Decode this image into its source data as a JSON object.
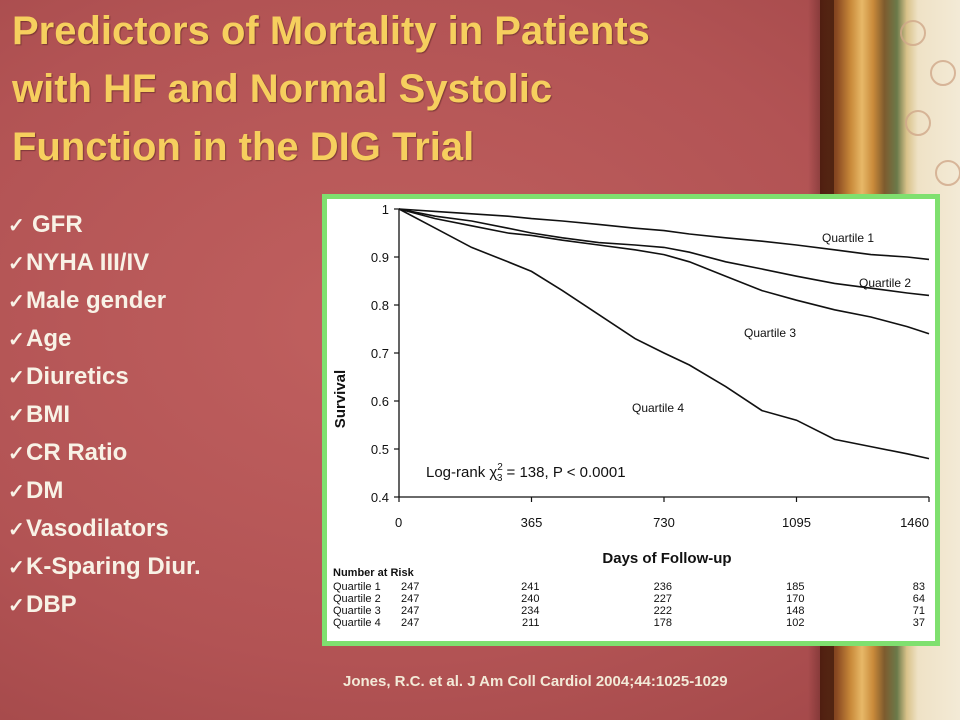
{
  "slide": {
    "title_lines": [
      "Predictors of Mortality in Patients",
      "with HF and Normal Systolic",
      "Function in the DIG Trial"
    ],
    "bullets": [
      "GFR",
      "NYHA III/IV",
      "Male gender",
      "Age",
      "Diuretics",
      "BMI",
      "CR Ratio",
      "DM",
      "Vasodilators",
      "K-Sparing Diur.",
      "DBP"
    ],
    "citation": "Jones, R.C. et al. J Am Coll Cardiol 2004;44:1025-1029",
    "colors": {
      "title": "#f6cf5e",
      "background": "#b8585a",
      "figure_border": "#7fe06f"
    }
  },
  "chart_data": {
    "type": "line",
    "title": "",
    "xlabel": "Days of Follow-up",
    "ylabel": "Survival",
    "xlim": [
      0,
      1460
    ],
    "ylim": [
      0.4,
      1
    ],
    "x_ticks": [
      0,
      365,
      730,
      1095,
      1460
    ],
    "x_tick_labels": [
      "0",
      "365",
      "730",
      "1095",
      "1460"
    ],
    "y_ticks": [
      0.4,
      0.5,
      0.6,
      0.7,
      0.8,
      0.9,
      1
    ],
    "y_tick_labels": [
      "0.4",
      "0.5",
      "0.6",
      "0.7",
      "0.8",
      "0.9",
      "1"
    ],
    "annotation_prefix": "Log-rank χ",
    "annotation_sup": "2",
    "annotation_sub": "3",
    "annotation_suffix": " = 138, P < 0.0001",
    "series": [
      {
        "name": "Quartile 1",
        "x": [
          0,
          100,
          200,
          300,
          365,
          450,
          550,
          650,
          730,
          800,
          900,
          1000,
          1095,
          1200,
          1300,
          1400,
          1460
        ],
        "y": [
          1.0,
          0.995,
          0.99,
          0.985,
          0.98,
          0.975,
          0.968,
          0.96,
          0.955,
          0.948,
          0.94,
          0.933,
          0.925,
          0.915,
          0.905,
          0.9,
          0.895
        ]
      },
      {
        "name": "Quartile 2",
        "x": [
          0,
          100,
          200,
          300,
          365,
          450,
          550,
          650,
          730,
          800,
          900,
          1000,
          1095,
          1200,
          1300,
          1400,
          1460
        ],
        "y": [
          1.0,
          0.985,
          0.975,
          0.96,
          0.95,
          0.94,
          0.93,
          0.925,
          0.92,
          0.91,
          0.89,
          0.875,
          0.86,
          0.845,
          0.835,
          0.825,
          0.82
        ]
      },
      {
        "name": "Quartile 3",
        "x": [
          0,
          100,
          200,
          300,
          365,
          450,
          550,
          650,
          730,
          800,
          900,
          1000,
          1095,
          1200,
          1300,
          1400,
          1460
        ],
        "y": [
          1.0,
          0.98,
          0.965,
          0.95,
          0.945,
          0.935,
          0.925,
          0.915,
          0.905,
          0.89,
          0.86,
          0.83,
          0.81,
          0.79,
          0.775,
          0.755,
          0.74
        ]
      },
      {
        "name": "Quartile 4",
        "x": [
          0,
          100,
          200,
          300,
          365,
          450,
          550,
          650,
          730,
          800,
          900,
          1000,
          1095,
          1200,
          1300,
          1400,
          1460
        ],
        "y": [
          1.0,
          0.96,
          0.92,
          0.89,
          0.87,
          0.83,
          0.78,
          0.73,
          0.7,
          0.675,
          0.63,
          0.58,
          0.56,
          0.52,
          0.505,
          0.49,
          0.48
        ]
      }
    ],
    "line_label_names": [
      "Quartile 1",
      "Quartile 2",
      "Quartile 3",
      "Quartile 4"
    ],
    "risk_table": {
      "header": "Number at Risk",
      "rows": [
        {
          "label": "Quartile 1",
          "values": [
            "247",
            "241",
            "236",
            "185",
            "83"
          ]
        },
        {
          "label": "Quartile 2",
          "values": [
            "247",
            "240",
            "227",
            "170",
            "64"
          ]
        },
        {
          "label": "Quartile 3",
          "values": [
            "247",
            "234",
            "222",
            "148",
            "71"
          ]
        },
        {
          "label": "Quartile 4",
          "values": [
            "247",
            "211",
            "178",
            "102",
            "37"
          ]
        }
      ]
    }
  }
}
